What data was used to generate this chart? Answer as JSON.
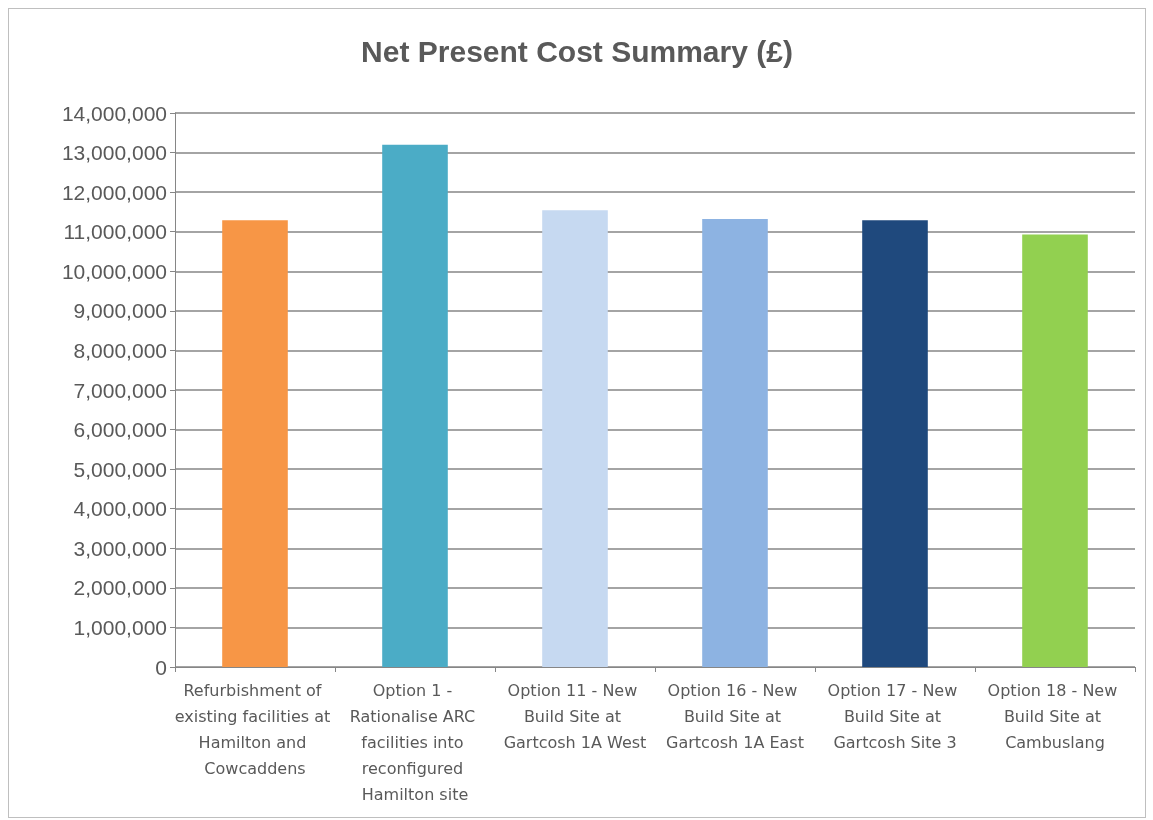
{
  "chart_data": {
    "type": "bar",
    "title": "Net Present Cost Summary (£)",
    "categories": [
      "Refurbishment of existing facilities at Hamilton and Cowcaddens",
      "Option 1 - Rationalise ARC facilities into reconfigured Hamilton site",
      "Option 11 - New Build Site at Gartcosh 1A West",
      "Option 16 - New Build Site at Gartcosh 1A East",
      "Option 17 - New Build Site at Gartcosh Site 3",
      "Option 18 - New Build Site at Cambuslang"
    ],
    "values": [
      11290000,
      13200000,
      11540000,
      11320000,
      11290000,
      10930000
    ],
    "colors": [
      "#f79646",
      "#4bacc6",
      "#c6d9f1",
      "#8db3e2",
      "#1f497d",
      "#92d050"
    ],
    "ylim": [
      0,
      14000000
    ],
    "yticks": [
      0,
      {
        "value": 1000000,
        "label": "1,000,000"
      },
      {
        "value": 2000000,
        "label": "2,000,000"
      },
      {
        "value": 3000000,
        "label": "3,000,000"
      },
      {
        "value": 4000000,
        "label": "4,000,000"
      },
      {
        "value": 5000000,
        "label": "5,000,000"
      },
      {
        "value": 6000000,
        "label": "6,000,000"
      },
      {
        "value": 7000000,
        "label": "7,000,000"
      },
      {
        "value": 8000000,
        "label": "8,000,000"
      },
      {
        "value": 9000000,
        "label": "9,000,000"
      },
      {
        "value": 10000000,
        "label": "10,000,000"
      },
      {
        "value": 11000000,
        "label": "11,000,000"
      },
      {
        "value": 12000000,
        "label": "12,000,000"
      },
      {
        "value": 13000000,
        "label": "13,000,000"
      },
      {
        "value": 14000000,
        "label": "14,000,000"
      }
    ],
    "grid": "y"
  }
}
